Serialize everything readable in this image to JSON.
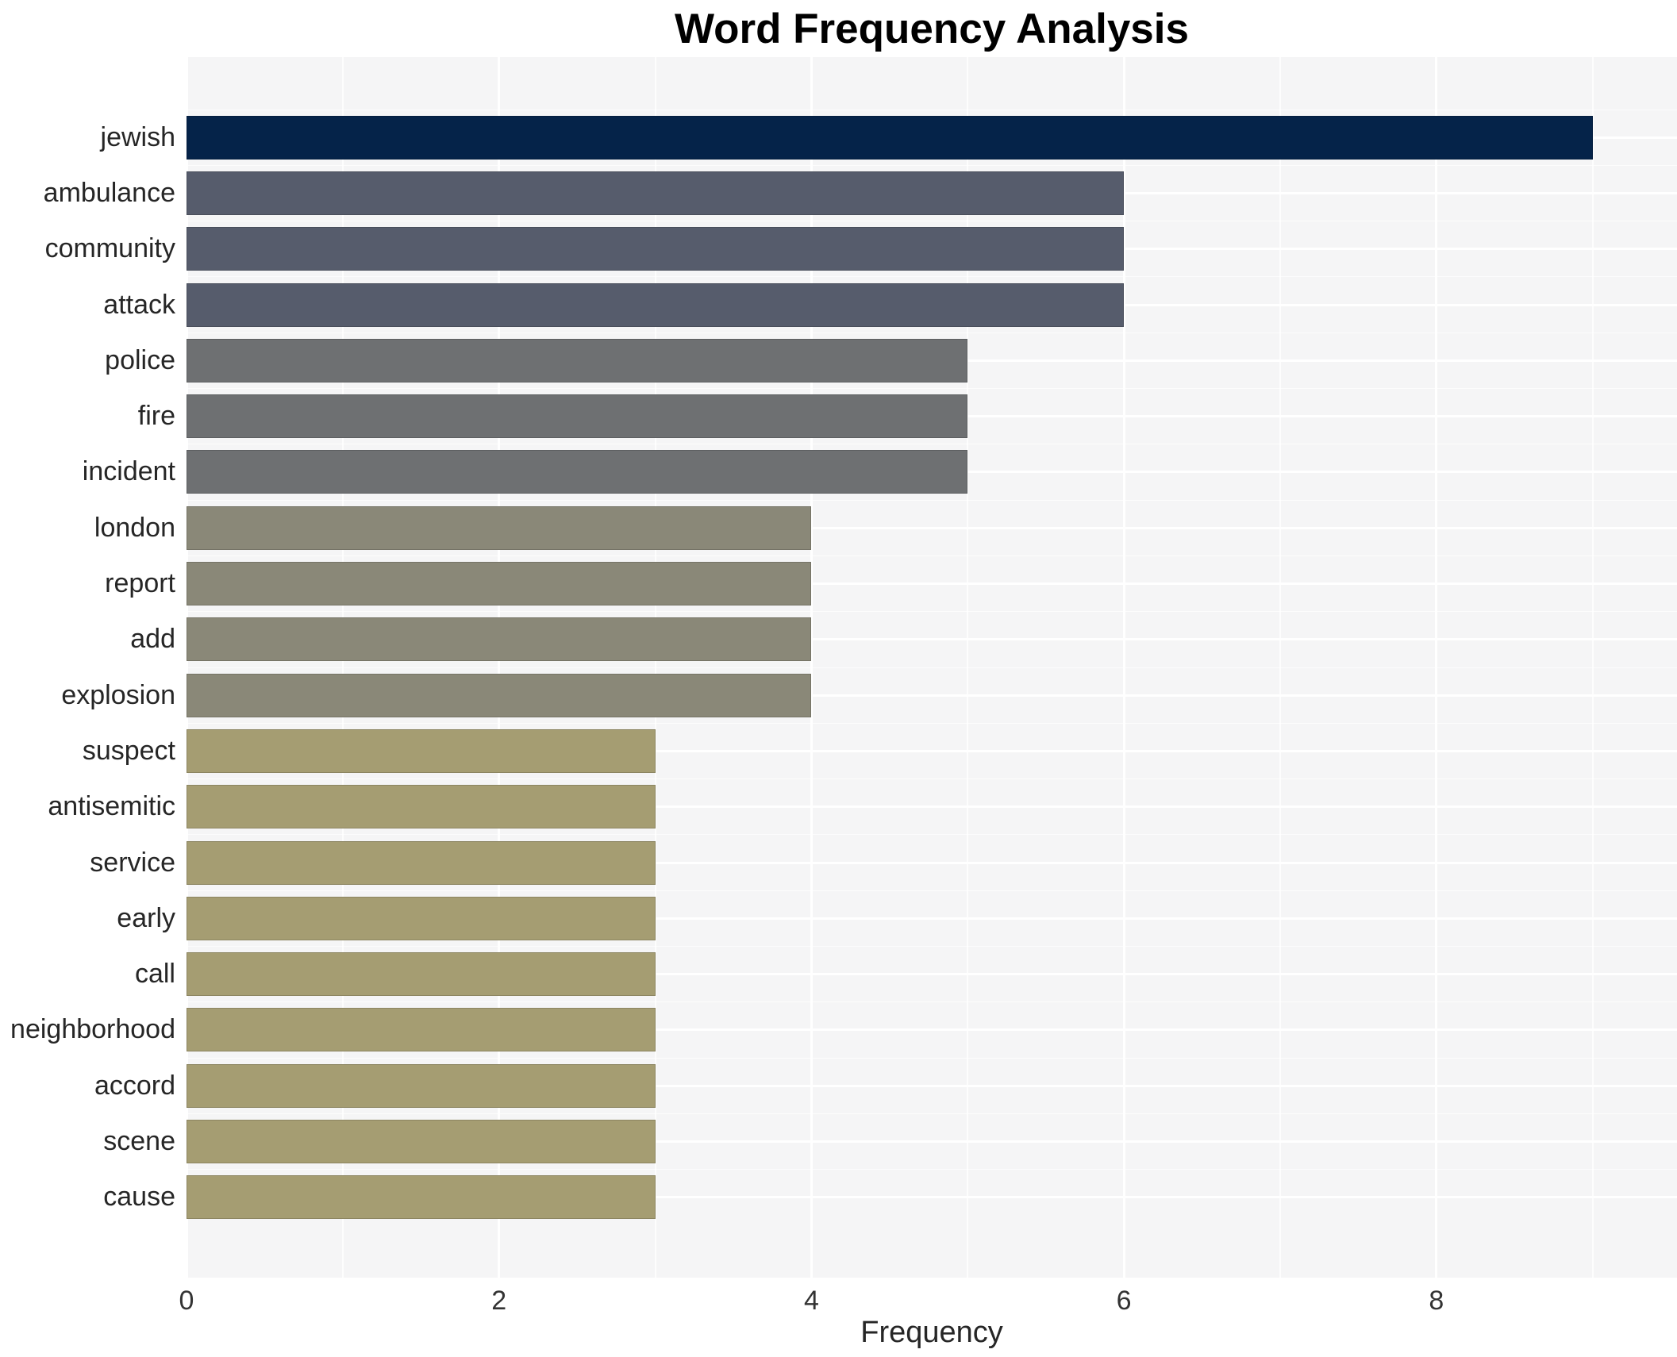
{
  "title": "Word Frequency Analysis",
  "chart_data": {
    "type": "bar",
    "orientation": "horizontal",
    "title": "Word Frequency Analysis",
    "xlabel": "Frequency",
    "ylabel": "",
    "xlim": [
      0,
      9.54
    ],
    "xticks": [
      0,
      2,
      4,
      6,
      8
    ],
    "grid": true,
    "legend": "none",
    "panel_bg": "#f5f5f6",
    "grid_color": "#ffffff",
    "categories": [
      "jewish",
      "ambulance",
      "community",
      "attack",
      "police",
      "fire",
      "incident",
      "london",
      "report",
      "add",
      "explosion",
      "suspect",
      "antisemitic",
      "service",
      "early",
      "call",
      "neighborhood",
      "accord",
      "scene",
      "cause"
    ],
    "values": [
      9,
      6,
      6,
      6,
      5,
      5,
      5,
      4,
      4,
      4,
      4,
      3,
      3,
      3,
      3,
      3,
      3,
      3,
      3,
      3
    ],
    "bar_colors": [
      "#052349",
      "#565c6c",
      "#565c6c",
      "#565c6c",
      "#6e7072",
      "#6e7072",
      "#6e7072",
      "#8a8878",
      "#8a8878",
      "#8a8878",
      "#8a8878",
      "#a59d72",
      "#a59d72",
      "#a59d72",
      "#a59d72",
      "#a59d72",
      "#a59d72",
      "#a59d72",
      "#a59d72",
      "#a59d72"
    ]
  }
}
